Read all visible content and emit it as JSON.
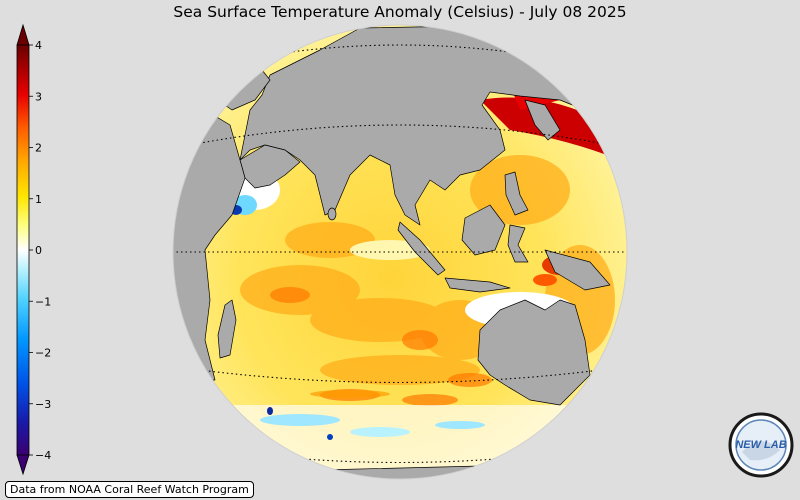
{
  "title": "Sea Surface Temperature Anomaly (Celsius) - July 08 2025",
  "credit": "Data from NOAA Coral Reef Watch Program",
  "logo_text": "NEW LAB",
  "colorbar": {
    "min": -4,
    "max": 4,
    "ticks": [
      "4",
      "3",
      "2",
      "1",
      "0",
      "−1",
      "−2",
      "−3",
      "−4"
    ],
    "colors": [
      "#3a0070",
      "#1a1aa8",
      "#0050e6",
      "#0096ff",
      "#50d2ff",
      "#b4f0ff",
      "#ffffff",
      "#ffff80",
      "#ffe600",
      "#ffa500",
      "#ff5a00",
      "#e60000",
      "#a00000",
      "#6a0000"
    ]
  },
  "map": {
    "projection": "orthographic",
    "center": "Indian Ocean",
    "ocean_colors": {
      "warm": "#ffb000",
      "mild": "#ffe84a",
      "neutral": "#ffffff",
      "cool": "#a8ecff",
      "hot": "#cc0000"
    },
    "land_color": "#aaaaaa",
    "background": "#dedede"
  }
}
